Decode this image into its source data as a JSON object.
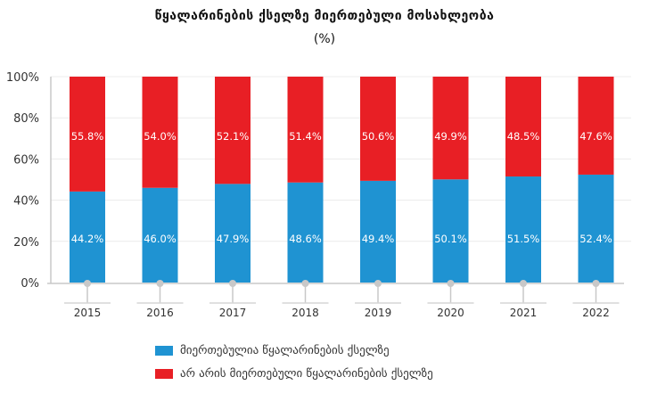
{
  "chart_data": {
    "type": "bar",
    "stacked": true,
    "title": "წყალარინების ქსელზე მიერთებული მოსახლეობა",
    "subtitle": "(%)",
    "categories": [
      "2015",
      "2016",
      "2017",
      "2018",
      "2019",
      "2020",
      "2021",
      "2022"
    ],
    "series": [
      {
        "name": "მიერთებულია წყალარინების ქსელზე",
        "color": "#1f93d2",
        "values": [
          44.2,
          46.0,
          47.9,
          48.6,
          49.4,
          50.1,
          51.5,
          52.4
        ],
        "labels": [
          "44.2%",
          "46.0%",
          "47.9%",
          "48.6%",
          "49.4%",
          "50.1%",
          "51.5%",
          "52.4%"
        ]
      },
      {
        "name": "არ არის მიერთებული წყალარინების ქსელზე",
        "color": "#e81f25",
        "values": [
          55.8,
          54.0,
          52.1,
          51.4,
          50.6,
          49.9,
          48.5,
          47.6
        ],
        "labels": [
          "55.8%",
          "54.0%",
          "52.1%",
          "51.4%",
          "50.6%",
          "49.9%",
          "48.5%",
          "47.6%"
        ]
      }
    ],
    "ylim": [
      0,
      100
    ],
    "yticks": [
      "0%",
      "20%",
      "40%",
      "60%",
      "80%",
      "100%"
    ],
    "grid": true,
    "legend": "bottom"
  }
}
